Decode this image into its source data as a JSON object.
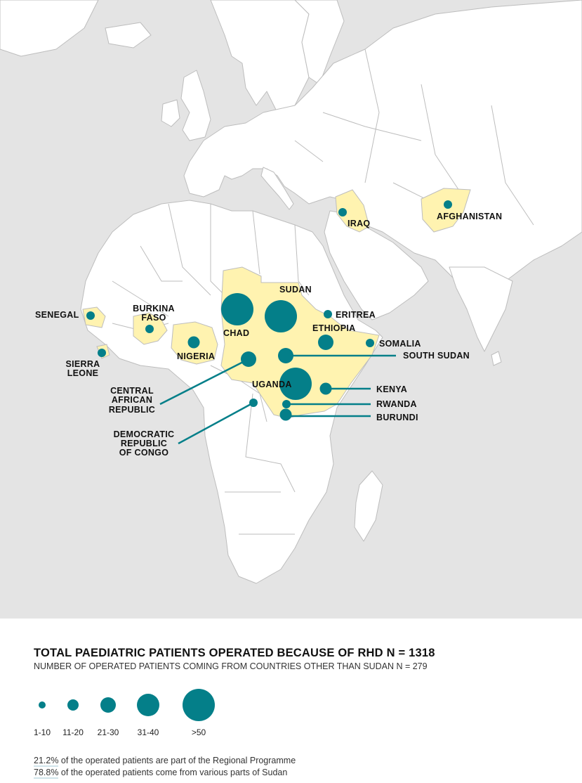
{
  "colors": {
    "ocean": "#e4e4e4",
    "land": "#ffffff",
    "border": "#bdbdbd",
    "highlight": "#fff3b0",
    "bubble": "#047f89",
    "leader": "#047f89"
  },
  "countries": [
    {
      "id": "sudan",
      "label": "SUDAN",
      "size_class": ">50"
    },
    {
      "id": "chad",
      "label": "CHAD",
      "size_class": ">50"
    },
    {
      "id": "uganda",
      "label": "UGANDA",
      "size_class": ">50"
    },
    {
      "id": "eritrea",
      "label": "ERITREA",
      "size_class": "1-10"
    },
    {
      "id": "ethiopia",
      "label": "ETHIOPIA",
      "size_class": "21-30"
    },
    {
      "id": "somalia",
      "label": "SOMALIA",
      "size_class": "1-10"
    },
    {
      "id": "south_sudan",
      "label": "SOUTH SUDAN",
      "size_class": "21-30"
    },
    {
      "id": "kenya",
      "label": "KENYA",
      "size_class": "11-20"
    },
    {
      "id": "rwanda",
      "label": "RWANDA",
      "size_class": "1-10"
    },
    {
      "id": "burundi",
      "label": "BURUNDI",
      "size_class": "11-20"
    },
    {
      "id": "car",
      "label_lines": [
        "CENTRAL",
        "AFRICAN",
        "REPUBLIC"
      ],
      "size_class": "21-30"
    },
    {
      "id": "drc",
      "label_lines": [
        "DEMOCRATIC",
        "REPUBLIC",
        "OF CONGO"
      ],
      "size_class": "1-10"
    },
    {
      "id": "nigeria",
      "label": "NIGERIA",
      "size_class": "11-20"
    },
    {
      "id": "burkina_faso",
      "label_lines": [
        "BURKINA",
        "FASO"
      ],
      "size_class": "1-10"
    },
    {
      "id": "senegal",
      "label": "SENEGAL",
      "size_class": "1-10"
    },
    {
      "id": "sierra_leone",
      "label_lines": [
        "SIERRA",
        "LEONE"
      ],
      "size_class": "1-10"
    },
    {
      "id": "iraq",
      "label": "IRAQ",
      "size_class": "1-10"
    },
    {
      "id": "afghanistan",
      "label": "AFGHANISTAN",
      "size_class": "1-10"
    }
  ],
  "legend": {
    "title": "TOTAL PAEDIATRIC PATIENTS OPERATED BECAUSE OF RHD N = 1318",
    "subtitle": "NUMBER OF OPERATED PATIENTS COMING FROM COUNTRIES OTHER THAN SUDAN N = 279",
    "size_classes": [
      "1-10",
      "11-20",
      "21-30",
      "31-40",
      ">50"
    ]
  },
  "notes": {
    "line1_pct": "21.2%",
    "line1_text": " of the operated patients are part of the Regional Programme",
    "line2_pct": "78.8%",
    "line2_text": " of the operated patients come from various parts of Sudan"
  }
}
